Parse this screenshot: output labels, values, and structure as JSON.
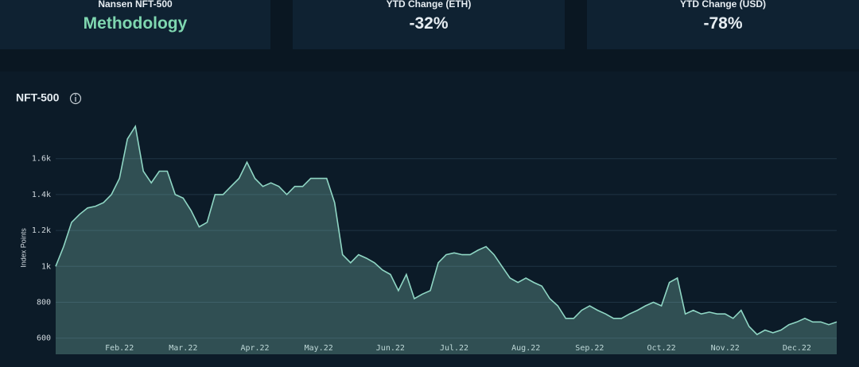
{
  "cards": [
    {
      "label": "Nansen NFT-500",
      "value": "Methodology"
    },
    {
      "label": "YTD Change (ETH)",
      "value": "-32%"
    },
    {
      "label": "YTD Change (USD)",
      "value": "-78%"
    }
  ],
  "chart_data": {
    "type": "line",
    "title": "NFT-500",
    "y_label": "Index Points",
    "categories": [
      null,
      null,
      null,
      null,
      null,
      null,
      null,
      null,
      "Feb.22",
      null,
      null,
      null,
      null,
      null,
      null,
      null,
      "Mar.22",
      null,
      null,
      null,
      null,
      null,
      null,
      null,
      null,
      "Apr.22",
      null,
      null,
      null,
      null,
      null,
      null,
      null,
      "May.22",
      null,
      null,
      null,
      null,
      null,
      null,
      null,
      null,
      "Jun.22",
      null,
      null,
      null,
      null,
      null,
      null,
      null,
      "Jul.22",
      null,
      null,
      null,
      null,
      null,
      null,
      null,
      null,
      "Aug.22",
      null,
      null,
      null,
      null,
      null,
      null,
      null,
      "Sep.22",
      null,
      null,
      null,
      null,
      null,
      null,
      null,
      null,
      "Oct.22",
      null,
      null,
      null,
      null,
      null,
      null,
      null,
      "Nov.22",
      null,
      null,
      null,
      null,
      null,
      null,
      null,
      null,
      "Dec.22",
      null,
      null,
      null,
      null,
      null
    ],
    "series": [
      {
        "name": "NFT-500",
        "color": "#8fd6c4",
        "values": [
          1000,
          1110,
          1245,
          1290,
          1325,
          1335,
          1355,
          1400,
          1490,
          1710,
          1780,
          1530,
          1465,
          1530,
          1530,
          1400,
          1380,
          1310,
          1220,
          1245,
          1400,
          1400,
          1445,
          1490,
          1580,
          1490,
          1445,
          1465,
          1445,
          1400,
          1445,
          1445,
          1490,
          1490,
          1490,
          1355,
          1065,
          1020,
          1065,
          1045,
          1020,
          980,
          955,
          865,
          955,
          820,
          845,
          865,
          1020,
          1065,
          1075,
          1065,
          1065,
          1090,
          1110,
          1065,
          1000,
          935,
          910,
          935,
          910,
          890,
          820,
          780,
          710,
          710,
          755,
          780,
          755,
          735,
          710,
          710,
          735,
          755,
          780,
          800,
          780,
          910,
          935,
          735,
          755,
          735,
          745,
          735,
          735,
          710,
          755,
          665,
          620,
          645,
          630,
          645,
          675,
          690,
          710,
          690,
          690,
          675,
          690
        ]
      }
    ],
    "ylim": [
      510,
      1820
    ],
    "yticks": [
      600,
      800,
      {
        "value": 1000,
        "label": "1k"
      },
      {
        "value": 1200,
        "label": "1.2k"
      },
      {
        "value": 1400,
        "label": "1.4k"
      },
      {
        "value": 1600,
        "label": "1.6k"
      }
    ],
    "grid": true
  }
}
